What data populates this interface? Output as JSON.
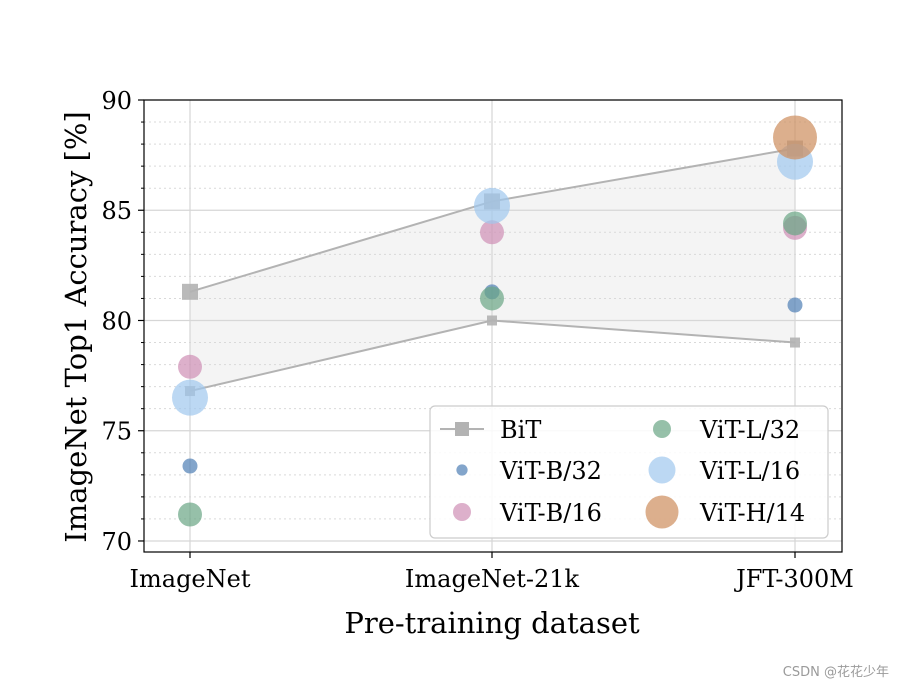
{
  "chart_data": {
    "type": "scatter",
    "title": "",
    "xlabel": "Pre-training dataset",
    "ylabel": "ImageNet Top1 Accuracy [%]",
    "categories": [
      "ImageNet",
      "ImageNet-21k",
      "JFT-300M"
    ],
    "ylim": [
      69.5,
      90
    ],
    "yticks": [
      "70",
      "75",
      "80",
      "85",
      "90"
    ],
    "grid": true,
    "legend_position": "bottom-right",
    "bit_range": {
      "name": "BiT",
      "upper": [
        81.3,
        85.4,
        87.8
      ],
      "lower": [
        76.8,
        80.0,
        79.0
      ],
      "color": "#b3b3b3"
    },
    "series": [
      {
        "name": "ViT-B/32",
        "values": [
          73.4,
          81.3,
          80.7
        ],
        "color": "#4f7fb5",
        "size": "small"
      },
      {
        "name": "ViT-B/16",
        "values": [
          77.9,
          84.0,
          84.2
        ],
        "color": "#cf8fb5",
        "size": "medium"
      },
      {
        "name": "ViT-L/32",
        "values": [
          71.2,
          81.0,
          84.4
        ],
        "color": "#6aa585",
        "size": "medium"
      },
      {
        "name": "ViT-L/16",
        "values": [
          76.5,
          85.2,
          87.2
        ],
        "color": "#9fc8ee",
        "size": "large"
      },
      {
        "name": "ViT-H/14",
        "values": [
          null,
          null,
          88.3
        ],
        "color": "#cd8d5d",
        "size": "xlarge"
      }
    ]
  },
  "watermark": "CSDN @花花少年"
}
